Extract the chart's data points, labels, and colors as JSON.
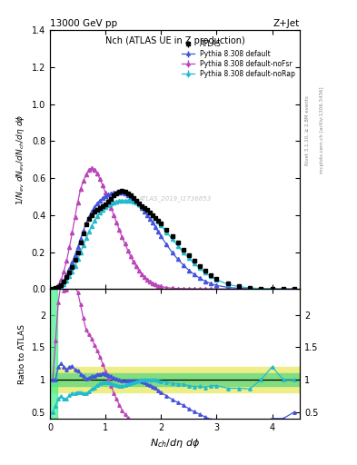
{
  "title_left": "13000 GeV pp",
  "title_right": "Z+Jet",
  "plot_title": "Nch (ATLAS UE in Z production)",
  "watermark": "ATLAS_2019_I1736653",
  "rivet_label": "Rivet 3.1.10, ≥ 2.8M events",
  "mcplots_label": "mcplots.cern.ch [arXiv:1306.3436]",
  "ylim_main": [
    0.0,
    1.4
  ],
  "ylim_ratio": [
    0.4,
    2.4
  ],
  "xlim": [
    0.0,
    4.5
  ],
  "yticks_main": [
    0.0,
    0.2,
    0.4,
    0.6,
    0.8,
    1.0,
    1.2,
    1.4
  ],
  "yticks_ratio": [
    0.5,
    1.0,
    1.5,
    2.0
  ],
  "xticks": [
    0,
    1,
    2,
    3,
    4
  ],
  "color_atlas": "#000000",
  "color_default": "#4455dd",
  "color_noFsr": "#bb44bb",
  "color_noRap": "#22bbcc",
  "atlas_x": [
    0.05,
    0.1,
    0.15,
    0.2,
    0.25,
    0.3,
    0.35,
    0.4,
    0.45,
    0.5,
    0.55,
    0.6,
    0.65,
    0.7,
    0.75,
    0.8,
    0.85,
    0.9,
    0.95,
    1.0,
    1.05,
    1.1,
    1.15,
    1.2,
    1.25,
    1.3,
    1.35,
    1.4,
    1.45,
    1.5,
    1.55,
    1.6,
    1.65,
    1.7,
    1.75,
    1.8,
    1.85,
    1.9,
    1.95,
    2.0,
    2.1,
    2.2,
    2.3,
    2.4,
    2.5,
    2.6,
    2.7,
    2.8,
    2.9,
    3.0,
    3.2,
    3.4,
    3.6,
    3.8,
    4.0,
    4.2,
    4.4
  ],
  "atlas_y": [
    0.002,
    0.005,
    0.01,
    0.02,
    0.04,
    0.065,
    0.09,
    0.12,
    0.16,
    0.2,
    0.25,
    0.3,
    0.35,
    0.38,
    0.4,
    0.42,
    0.43,
    0.44,
    0.45,
    0.46,
    0.475,
    0.49,
    0.505,
    0.515,
    0.525,
    0.53,
    0.525,
    0.515,
    0.505,
    0.495,
    0.48,
    0.465,
    0.45,
    0.44,
    0.43,
    0.415,
    0.4,
    0.385,
    0.37,
    0.355,
    0.32,
    0.285,
    0.25,
    0.215,
    0.185,
    0.155,
    0.125,
    0.1,
    0.075,
    0.055,
    0.03,
    0.015,
    0.007,
    0.003,
    0.001,
    0.0005,
    0.0002
  ],
  "atlas_yerr": [
    0.001,
    0.001,
    0.002,
    0.003,
    0.004,
    0.005,
    0.006,
    0.007,
    0.007,
    0.008,
    0.008,
    0.008,
    0.009,
    0.009,
    0.009,
    0.009,
    0.009,
    0.009,
    0.009,
    0.009,
    0.009,
    0.009,
    0.009,
    0.009,
    0.009,
    0.009,
    0.009,
    0.009,
    0.009,
    0.009,
    0.009,
    0.009,
    0.009,
    0.009,
    0.009,
    0.009,
    0.009,
    0.009,
    0.009,
    0.009,
    0.009,
    0.009,
    0.009,
    0.009,
    0.009,
    0.008,
    0.007,
    0.006,
    0.005,
    0.004,
    0.003,
    0.002,
    0.001,
    0.001,
    0.0005,
    0.0003,
    0.0001
  ],
  "pd_x": [
    0.05,
    0.1,
    0.15,
    0.2,
    0.25,
    0.3,
    0.35,
    0.4,
    0.45,
    0.5,
    0.55,
    0.6,
    0.65,
    0.7,
    0.75,
    0.8,
    0.85,
    0.9,
    0.95,
    1.0,
    1.05,
    1.1,
    1.15,
    1.2,
    1.25,
    1.3,
    1.35,
    1.4,
    1.45,
    1.5,
    1.55,
    1.6,
    1.65,
    1.7,
    1.75,
    1.8,
    1.85,
    1.9,
    1.95,
    2.0,
    2.1,
    2.2,
    2.3,
    2.4,
    2.5,
    2.6,
    2.7,
    2.8,
    2.9,
    3.0,
    3.2,
    3.4,
    3.6,
    3.8,
    4.0,
    4.2,
    4.4
  ],
  "pd_y": [
    0.002,
    0.005,
    0.012,
    0.025,
    0.048,
    0.075,
    0.108,
    0.145,
    0.185,
    0.228,
    0.272,
    0.315,
    0.355,
    0.39,
    0.42,
    0.445,
    0.465,
    0.48,
    0.492,
    0.502,
    0.51,
    0.516,
    0.52,
    0.522,
    0.523,
    0.52,
    0.515,
    0.508,
    0.498,
    0.486,
    0.472,
    0.456,
    0.438,
    0.42,
    0.4,
    0.38,
    0.358,
    0.335,
    0.31,
    0.285,
    0.24,
    0.198,
    0.162,
    0.13,
    0.102,
    0.078,
    0.058,
    0.042,
    0.029,
    0.02,
    0.009,
    0.004,
    0.002,
    0.001,
    0.0004,
    0.0002,
    0.0001
  ],
  "pd_yerr": [
    0.001,
    0.001,
    0.002,
    0.003,
    0.004,
    0.005,
    0.006,
    0.006,
    0.007,
    0.007,
    0.008,
    0.008,
    0.008,
    0.008,
    0.008,
    0.008,
    0.008,
    0.008,
    0.008,
    0.008,
    0.008,
    0.008,
    0.008,
    0.008,
    0.008,
    0.008,
    0.008,
    0.008,
    0.008,
    0.008,
    0.008,
    0.008,
    0.008,
    0.008,
    0.008,
    0.008,
    0.008,
    0.008,
    0.008,
    0.008,
    0.008,
    0.007,
    0.007,
    0.006,
    0.006,
    0.005,
    0.005,
    0.004,
    0.003,
    0.003,
    0.002,
    0.001,
    0.001,
    0.0005,
    0.0003,
    0.0002,
    0.0001
  ],
  "pf_x": [
    0.05,
    0.1,
    0.15,
    0.2,
    0.25,
    0.3,
    0.35,
    0.4,
    0.45,
    0.5,
    0.55,
    0.6,
    0.65,
    0.7,
    0.75,
    0.8,
    0.85,
    0.9,
    0.95,
    1.0,
    1.05,
    1.1,
    1.15,
    1.2,
    1.25,
    1.3,
    1.35,
    1.4,
    1.45,
    1.5,
    1.55,
    1.6,
    1.65,
    1.7,
    1.75,
    1.8,
    1.85,
    1.9,
    1.95,
    2.0,
    2.1,
    2.2,
    2.3,
    2.4,
    2.5,
    2.6,
    2.7,
    2.8,
    2.9,
    3.0,
    3.2,
    3.4,
    3.6,
    3.8,
    4.0,
    4.2,
    4.4
  ],
  "pf_y": [
    0.002,
    0.008,
    0.022,
    0.05,
    0.095,
    0.155,
    0.225,
    0.305,
    0.39,
    0.47,
    0.54,
    0.585,
    0.62,
    0.645,
    0.655,
    0.645,
    0.625,
    0.595,
    0.56,
    0.52,
    0.48,
    0.44,
    0.4,
    0.36,
    0.32,
    0.28,
    0.245,
    0.21,
    0.178,
    0.148,
    0.122,
    0.1,
    0.082,
    0.066,
    0.052,
    0.041,
    0.032,
    0.024,
    0.018,
    0.014,
    0.008,
    0.005,
    0.003,
    0.002,
    0.0012,
    0.0008,
    0.0005,
    0.0003,
    0.0002,
    0.0001,
    6e-05,
    3e-05,
    2e-05,
    1e-05,
    5e-06,
    3e-06,
    1e-06
  ],
  "pf_yerr": [
    0.001,
    0.001,
    0.002,
    0.003,
    0.005,
    0.007,
    0.008,
    0.009,
    0.01,
    0.01,
    0.01,
    0.01,
    0.01,
    0.01,
    0.01,
    0.01,
    0.01,
    0.009,
    0.009,
    0.009,
    0.009,
    0.009,
    0.008,
    0.008,
    0.008,
    0.007,
    0.007,
    0.007,
    0.006,
    0.006,
    0.005,
    0.005,
    0.005,
    0.004,
    0.004,
    0.004,
    0.003,
    0.003,
    0.003,
    0.002,
    0.002,
    0.002,
    0.001,
    0.001,
    0.001,
    0.0005,
    0.0004,
    0.0003,
    0.0002,
    0.0001,
    5e-05,
    3e-05,
    2e-05,
    1e-05,
    5e-06,
    3e-06,
    1e-06
  ],
  "pr_x": [
    0.05,
    0.1,
    0.15,
    0.2,
    0.25,
    0.3,
    0.35,
    0.4,
    0.45,
    0.5,
    0.55,
    0.6,
    0.65,
    0.7,
    0.75,
    0.8,
    0.85,
    0.9,
    0.95,
    1.0,
    1.05,
    1.1,
    1.15,
    1.2,
    1.25,
    1.3,
    1.35,
    1.4,
    1.45,
    1.5,
    1.55,
    1.6,
    1.65,
    1.7,
    1.75,
    1.8,
    1.85,
    1.9,
    1.95,
    2.0,
    2.1,
    2.2,
    2.3,
    2.4,
    2.5,
    2.6,
    2.7,
    2.8,
    2.9,
    3.0,
    3.2,
    3.4,
    3.6,
    3.8,
    4.0,
    4.2,
    4.4
  ],
  "pr_y": [
    0.001,
    0.003,
    0.007,
    0.015,
    0.028,
    0.046,
    0.068,
    0.095,
    0.126,
    0.162,
    0.2,
    0.238,
    0.275,
    0.31,
    0.342,
    0.37,
    0.394,
    0.414,
    0.43,
    0.443,
    0.454,
    0.462,
    0.468,
    0.473,
    0.476,
    0.478,
    0.479,
    0.478,
    0.476,
    0.472,
    0.466,
    0.459,
    0.45,
    0.44,
    0.428,
    0.415,
    0.4,
    0.383,
    0.365,
    0.346,
    0.308,
    0.27,
    0.234,
    0.2,
    0.168,
    0.138,
    0.112,
    0.088,
    0.068,
    0.05,
    0.026,
    0.013,
    0.006,
    0.003,
    0.0012,
    0.0005,
    0.0002
  ],
  "pr_yerr": [
    0.0005,
    0.001,
    0.001,
    0.002,
    0.003,
    0.004,
    0.005,
    0.005,
    0.006,
    0.006,
    0.007,
    0.007,
    0.007,
    0.007,
    0.007,
    0.007,
    0.007,
    0.007,
    0.008,
    0.008,
    0.008,
    0.008,
    0.008,
    0.008,
    0.008,
    0.008,
    0.008,
    0.008,
    0.008,
    0.008,
    0.008,
    0.008,
    0.008,
    0.008,
    0.008,
    0.007,
    0.007,
    0.007,
    0.007,
    0.007,
    0.007,
    0.006,
    0.006,
    0.006,
    0.005,
    0.005,
    0.004,
    0.004,
    0.003,
    0.003,
    0.002,
    0.001,
    0.001,
    0.0005,
    0.0003,
    0.0002,
    0.0001
  ],
  "band_green_lo": 0.9,
  "band_green_hi": 1.1,
  "band_yellow_lo": 0.8,
  "band_yellow_hi": 1.2,
  "band_green_color": "#80dd80",
  "band_yellow_color": "#eeee88",
  "band_bright_green_color": "#44ee88"
}
